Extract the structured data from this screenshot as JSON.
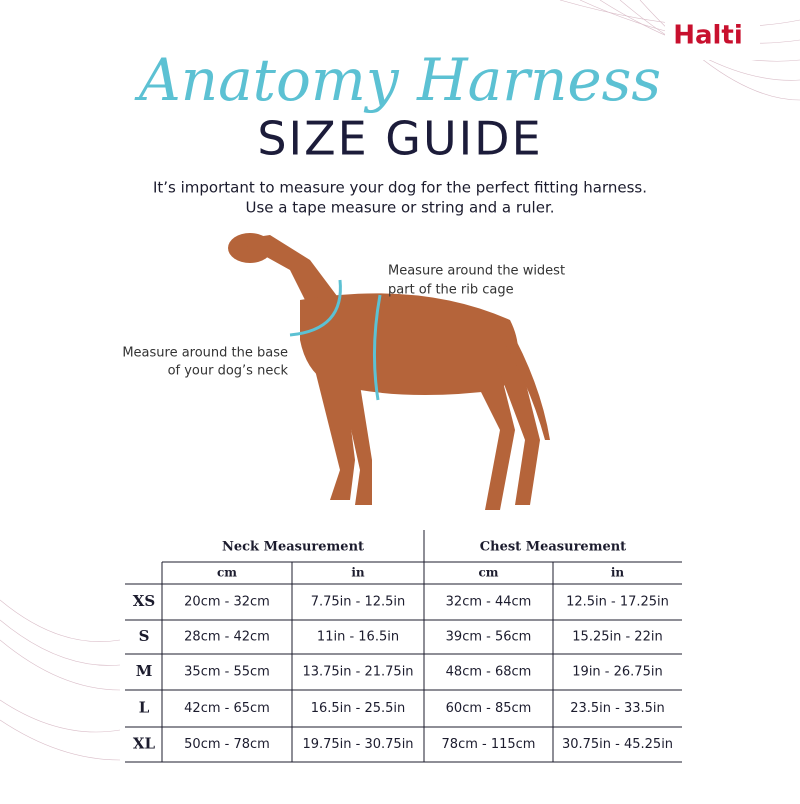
{
  "brand": "Halti",
  "header": {
    "script_title": "Anatomy Harness",
    "title": "SIZE GUIDE",
    "intro": [
      "It’s important to measure your dog for the perfect fitting harness.",
      "Use a tape measure or string and a ruler."
    ]
  },
  "annotations": {
    "chest": [
      "Measure around the widest",
      "part of the rib cage"
    ],
    "neck": [
      "Measure around the base",
      "of your dog’s neck"
    ]
  },
  "table": {
    "groups": [
      "Neck Measurement",
      "Chest Measurement"
    ],
    "units": [
      "cm",
      "in",
      "cm",
      "in"
    ],
    "rows": [
      [
        "XS",
        "20cm - 32cm",
        "7.75in - 12.5in",
        "32cm - 44cm",
        "12.5in - 17.25in"
      ],
      [
        "S",
        "28cm - 42cm",
        "11in - 16.5in",
        "39cm - 56cm",
        "15.25in - 22in"
      ],
      [
        "M",
        "35cm - 55cm",
        "13.75in - 21.75in",
        "48cm - 68cm",
        "19in - 26.75in"
      ],
      [
        "L",
        "42cm - 65cm",
        "16.5in - 25.5in",
        "60cm - 85cm",
        "23.5in - 33.5in"
      ],
      [
        "XL",
        "50cm - 78cm",
        "19.75in - 30.75in",
        "78cm - 115cm",
        "30.75in - 45.25in"
      ]
    ]
  }
}
